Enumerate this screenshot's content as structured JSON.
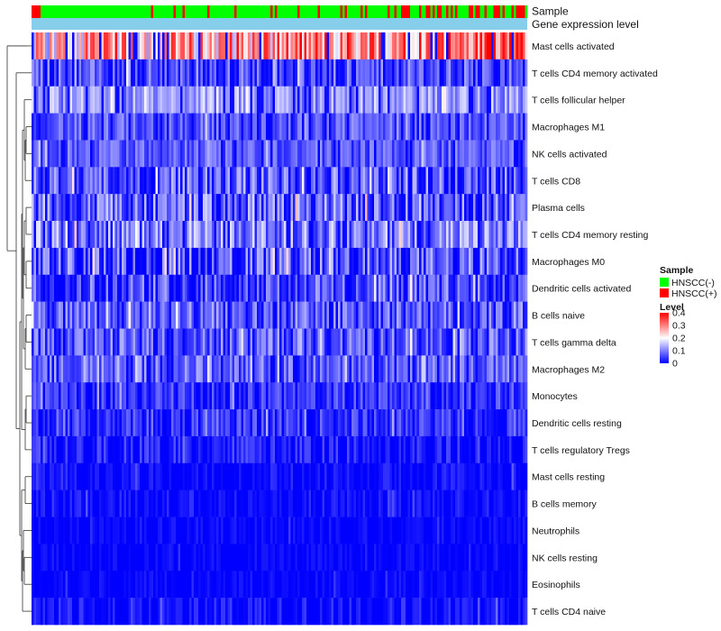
{
  "chart_data": {
    "type": "heatmap",
    "annotations": {
      "sample_label": "Sample",
      "level_label": "Gene expression level",
      "sample_legend_title": "Sample",
      "sample_classes": [
        {
          "name": "HNSCC(-)",
          "color": "#00ff00"
        },
        {
          "name": "HNSCC(+)",
          "color": "#ff0000"
        }
      ],
      "gene_expression_color": "#87ceeb"
    },
    "color_scale": {
      "title": "Level",
      "ticks": [
        "0.4",
        "0.3",
        "0.2",
        "0.1",
        "0"
      ],
      "tick_values": [
        0.4,
        0.3,
        0.2,
        0.1,
        0
      ],
      "min": 0,
      "max": 0.4,
      "low_color": "#0000ff",
      "mid_color": "#ffffff",
      "high_color": "#ff0000",
      "mid_value": 0.2
    },
    "rows": [
      {
        "name": "Mast cells activated",
        "mean": 0.22,
        "spread": 0.13,
        "trend": 0.11
      },
      {
        "name": "T cells CD4 memory activated",
        "mean": 0.06,
        "spread": 0.07,
        "trend": 0
      },
      {
        "name": "T cells follicular helper",
        "mean": 0.12,
        "spread": 0.06,
        "trend": 0
      },
      {
        "name": "Macrophages M1",
        "mean": 0.07,
        "spread": 0.05,
        "trend": 0
      },
      {
        "name": "NK cells activated",
        "mean": 0.07,
        "spread": 0.05,
        "trend": 0
      },
      {
        "name": "T cells CD8",
        "mean": 0.07,
        "spread": 0.08,
        "trend": 0
      },
      {
        "name": "Plasma cells",
        "mean": 0.08,
        "spread": 0.09,
        "trend": 0
      },
      {
        "name": "T cells CD4 memory resting",
        "mean": 0.1,
        "spread": 0.08,
        "trend": 0
      },
      {
        "name": "Macrophages M0",
        "mean": 0.06,
        "spread": 0.09,
        "trend": 0
      },
      {
        "name": "Dendritic cells activated",
        "mean": 0.06,
        "spread": 0.08,
        "trend": 0
      },
      {
        "name": "B cells naive",
        "mean": 0.07,
        "spread": 0.07,
        "trend": 0
      },
      {
        "name": "T cells gamma delta",
        "mean": 0.07,
        "spread": 0.07,
        "trend": 0
      },
      {
        "name": "Macrophages M2",
        "mean": 0.08,
        "spread": 0.06,
        "trend": 0
      },
      {
        "name": "Monocytes",
        "mean": 0.04,
        "spread": 0.05,
        "trend": 0
      },
      {
        "name": "Dendritic cells resting",
        "mean": 0.04,
        "spread": 0.05,
        "trend": 0
      },
      {
        "name": "T cells regulatory  Tregs",
        "mean": 0.02,
        "spread": 0.05,
        "trend": 0
      },
      {
        "name": "Mast cells resting",
        "mean": 0.01,
        "spread": 0.03,
        "trend": 0
      },
      {
        "name": "B cells memory",
        "mean": 0.01,
        "spread": 0.03,
        "trend": 0
      },
      {
        "name": "Neutrophils",
        "mean": 0.005,
        "spread": 0.02,
        "trend": 0
      },
      {
        "name": "NK cells resting",
        "mean": 0.004,
        "spread": 0.02,
        "trend": 0
      },
      {
        "name": "Eosinophils",
        "mean": 0.004,
        "spread": 0.02,
        "trend": 0
      },
      {
        "name": "T cells CD4 naive",
        "mean": 0.01,
        "spread": 0.04,
        "trend": 0
      }
    ],
    "n_samples": 220,
    "sample_groups_note": "Samples ordered left to right; HNSCC(+) samples increasingly frequent toward the right side"
  }
}
